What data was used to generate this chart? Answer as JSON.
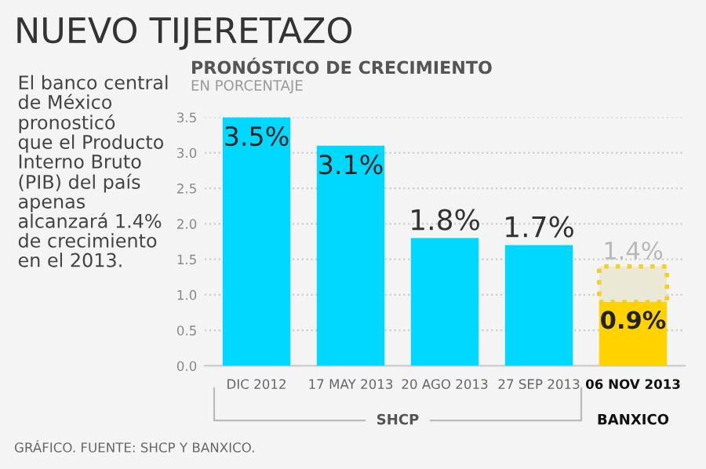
{
  "chart_data": {
    "type": "bar",
    "title": "NUEVO TIJERETAZO",
    "subtitle": "PRONÓSTICO DE CRECIMIENTO\nEN PORCENTAJE",
    "categories": [
      "DIC 2012",
      "17 MAY 2013",
      "20 AGO 2013",
      "27 SEP 2013",
      "06 NOV 2013"
    ],
    "series": [
      {
        "colors": [
          "#00d8ff",
          "#00d8ff",
          "#00d8ff",
          "#00d8ff",
          "#ffd200"
        ],
        "values": [
          3.5,
          3.1,
          1.8,
          1.7,
          0.9
        ],
        "value_labels": [
          "3.5%",
          "3.1%",
          "1.8%",
          "1.7%",
          "0.9%"
        ]
      },
      {
        "color": "#f5d020",
        "base": [
          null,
          null,
          null,
          null,
          0.9
        ],
        "values": [
          null,
          null,
          null,
          null,
          0.5
        ],
        "value_labels": [
          null,
          null,
          null,
          null,
          "1.4%"
        ],
        "line_style": "dotted"
      }
    ],
    "ylim": [
      0,
      3.5
    ],
    "yticks": [
      {
        "value": 0,
        "label": "0.0"
      },
      {
        "value": 0.5,
        "label": "0.5"
      },
      {
        "value": 1,
        "label": "1.0"
      },
      {
        "value": 1.5,
        "label": "1.5"
      },
      {
        "value": 2,
        "label": "2.0"
      },
      {
        "value": 2.5,
        "label": "2.5"
      },
      {
        "value": 3,
        "label": "3.0"
      },
      {
        "value": 3.5,
        "label": "3.5"
      }
    ],
    "grid": "y",
    "annotations": [
      "El banco central\nde México\npronosticó\nque el Producto\nInterno Bruto\n(PIB) del país\napenas\nalcanzará 1.4%\nde crecimiento\nen el 2013.",
      "SHCP",
      "BANXICO",
      "GRÁFICO. FUENTE: SHCP Y BANXICO."
    ]
  }
}
